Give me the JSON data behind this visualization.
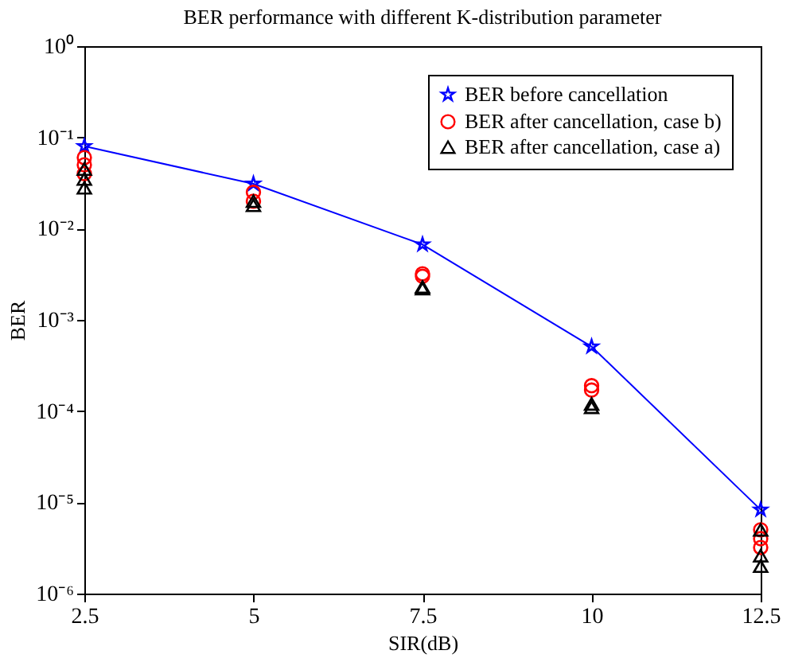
{
  "chart_data": {
    "type": "line",
    "title": "BER performance with different K-distribution parameter",
    "xlabel": "SIR(dB)",
    "ylabel": "BER",
    "log": "y",
    "grid": false,
    "legend": "top right",
    "xlim": [
      2.5,
      12.5
    ],
    "xticks": [
      2.5,
      5,
      7.5,
      10,
      12.5
    ],
    "ylim": [
      1e-06,
      1
    ],
    "yticks": [
      {
        "value": 1,
        "label": "10⁰"
      },
      {
        "value": 0.1,
        "label": "10⁻¹"
      },
      {
        "value": 0.01,
        "label": "10⁻²"
      },
      {
        "value": 0.001,
        "label": "10⁻³"
      },
      {
        "value": 0.0001,
        "label": "10⁻⁴"
      },
      {
        "value": 1e-05,
        "label": "10⁻⁵"
      },
      {
        "value": 1e-06,
        "label": "10⁻⁶"
      }
    ],
    "series": [
      {
        "name": "BER before cancellation",
        "marker": "star",
        "line_style": "solid",
        "color": "#0000ff",
        "x": [
          2.5,
          5,
          7.5,
          10,
          12.5
        ],
        "values": [
          0.08,
          0.031,
          0.0067,
          0.00051,
          8.3e-06
        ]
      },
      {
        "name": "BER after cancellation, case b)",
        "type": "scatter",
        "marker": "circle",
        "color": "#ff0000",
        "x": [
          2.5,
          2.5,
          2.5,
          5,
          5,
          7.5,
          7.5,
          10,
          10,
          12.5,
          12.5,
          12.5
        ],
        "values": [
          0.06,
          0.05,
          0.04,
          0.025,
          0.02,
          0.0032,
          0.003,
          0.00019,
          0.00017,
          5e-06,
          4e-06,
          3.2e-06
        ]
      },
      {
        "name": "BER after cancellation, case a)",
        "type": "scatter",
        "marker": "triangle",
        "color": "#000000",
        "x": [
          2.5,
          2.5,
          2.5,
          5,
          5,
          7.5,
          7.5,
          10,
          10,
          12.5,
          12.5,
          12.5
        ],
        "values": [
          0.045,
          0.035,
          0.028,
          0.02,
          0.018,
          0.0023,
          0.0022,
          0.00012,
          0.00011,
          5e-06,
          2.6e-06,
          2e-06
        ]
      }
    ]
  }
}
